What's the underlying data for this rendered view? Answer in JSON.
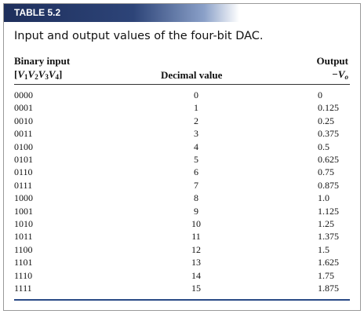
{
  "table_label": "TABLE 5.2",
  "caption": "Input and output values of the four-bit DAC.",
  "header": {
    "binary": {
      "line1": "Binary input",
      "open": "[",
      "close": "]",
      "symbols": [
        {
          "base": "V",
          "sub": "1"
        },
        {
          "base": "V",
          "sub": "2"
        },
        {
          "base": "V",
          "sub": "3"
        },
        {
          "base": "V",
          "sub": "4"
        }
      ]
    },
    "decimal": "Decimal value",
    "output": {
      "line1": "Output",
      "prefix": "−",
      "base": "V",
      "sub": "o"
    }
  },
  "table": {
    "rows": [
      [
        "0000",
        "0",
        "0"
      ],
      [
        "0001",
        "1",
        "0.125"
      ],
      [
        "0010",
        "2",
        "0.25"
      ],
      [
        "0011",
        "3",
        "0.375"
      ],
      [
        "0100",
        "4",
        "0.5"
      ],
      [
        "0101",
        "5",
        "0.625"
      ],
      [
        "0110",
        "6",
        "0.75"
      ],
      [
        "0111",
        "7",
        "0.875"
      ],
      [
        "1000",
        "8",
        "1.0"
      ],
      [
        "1001",
        "9",
        "1.125"
      ],
      [
        "1010",
        "10",
        "1.25"
      ],
      [
        "1011",
        "11",
        "1.375"
      ],
      [
        "1100",
        "12",
        "1.5"
      ],
      [
        "1101",
        "13",
        "1.625"
      ],
      [
        "1110",
        "14",
        "1.75"
      ],
      [
        "1111",
        "15",
        "1.875"
      ]
    ]
  }
}
